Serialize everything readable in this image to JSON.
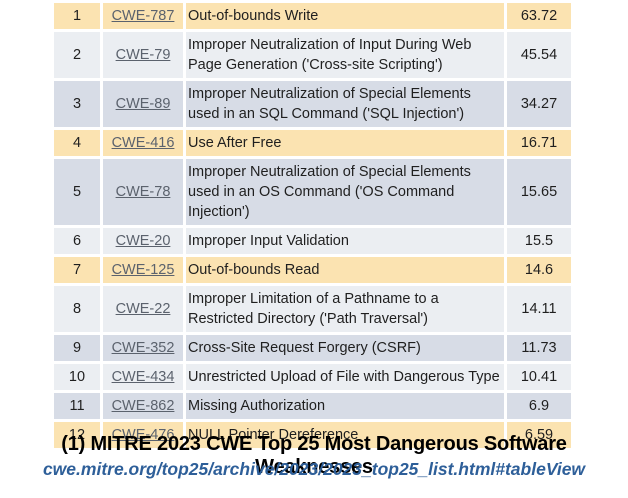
{
  "page": {
    "caption": "(1) MITRE 2023 CWE Top 25 Most Dangerous Software Weaknesses",
    "source_url": "cwe.mitre.org/top25/archive/2023/2023_top25_list.html#tableView"
  },
  "colors": {
    "highlight_row": "#fbe3b1",
    "stripe_light": "#ebeef2",
    "stripe_dark": "#d7dce6",
    "link_text": "#5b626d",
    "body_text": "#1f1f1f",
    "caption_text": "#000000",
    "url_text": "#2e5f99"
  },
  "table": {
    "rows": [
      {
        "rank": "1",
        "cwe_id": "CWE-787",
        "description": "Out-of-bounds Write",
        "score": "63.72",
        "bg": "highlight"
      },
      {
        "rank": "2",
        "cwe_id": "CWE-79",
        "description": "Improper Neutralization of Input During Web Page Generation ('Cross-site Scripting')",
        "score": "45.54",
        "bg": "light"
      },
      {
        "rank": "3",
        "cwe_id": "CWE-89",
        "description": "Improper Neutralization of Special Elements used in an SQL Command ('SQL Injection')",
        "score": "34.27",
        "bg": "dark"
      },
      {
        "rank": "4",
        "cwe_id": "CWE-416",
        "description": "Use After Free",
        "score": "16.71",
        "bg": "highlight"
      },
      {
        "rank": "5",
        "cwe_id": "CWE-78",
        "description": "Improper Neutralization of Special Elements used in an OS Command ('OS Command Injection')",
        "score": "15.65",
        "bg": "dark"
      },
      {
        "rank": "6",
        "cwe_id": "CWE-20",
        "description": "Improper Input Validation",
        "score": "15.5",
        "bg": "light"
      },
      {
        "rank": "7",
        "cwe_id": "CWE-125",
        "description": "Out-of-bounds Read",
        "score": "14.6",
        "bg": "highlight"
      },
      {
        "rank": "8",
        "cwe_id": "CWE-22",
        "description": "Improper Limitation of a Pathname to a Restricted Directory ('Path Traversal')",
        "score": "14.11",
        "bg": "light"
      },
      {
        "rank": "9",
        "cwe_id": "CWE-352",
        "description": "Cross-Site Request Forgery (CSRF)",
        "score": "11.73",
        "bg": "dark"
      },
      {
        "rank": "10",
        "cwe_id": "CWE-434",
        "description": "Unrestricted Upload of File with Dangerous Type",
        "score": "10.41",
        "bg": "light"
      },
      {
        "rank": "11",
        "cwe_id": "CWE-862",
        "description": "Missing Authorization",
        "score": "6.9",
        "bg": "dark"
      },
      {
        "rank": "12",
        "cwe_id": "CWE-476",
        "description": "NULL Pointer Dereference",
        "score": "6.59",
        "bg": "highlight"
      }
    ]
  }
}
